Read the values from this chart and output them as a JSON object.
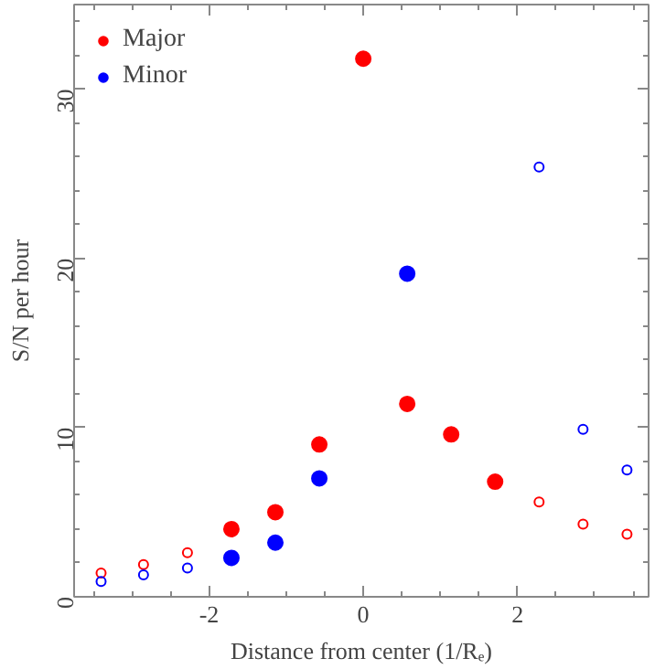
{
  "chart_data": {
    "type": "scatter",
    "xlabel": "Distance from center (1/Rₑ)",
    "ylabel": "S/N per hour",
    "xlim": [
      -3.75,
      3.7
    ],
    "ylim": [
      0,
      35
    ],
    "xticks": [
      -2,
      0,
      2
    ],
    "yticks": [
      0,
      10,
      20,
      30
    ],
    "grid": false,
    "legend": "top left",
    "series": [
      {
        "name": "Major",
        "color": "#ff0000",
        "marker": "circle",
        "x": [
          -1.71,
          -1.14,
          -0.57,
          0,
          0.57,
          1.14,
          1.71
        ],
        "values": [
          4.0,
          5.0,
          9.0,
          31.8,
          11.4,
          9.6,
          6.8
        ]
      },
      {
        "color": "#ff0000",
        "marker": "circle_open",
        "x": [
          -3.4,
          -2.85,
          -2.28,
          2.28,
          2.85,
          3.42
        ],
        "values": [
          1.4,
          1.9,
          2.6,
          5.6,
          4.3,
          3.7
        ]
      },
      {
        "name": "Minor",
        "color": "#0000ff",
        "marker": "circle",
        "x": [
          -1.71,
          -1.14,
          -0.57,
          0.57
        ],
        "values": [
          2.3,
          3.2,
          7.0,
          19.1
        ]
      },
      {
        "color": "#0000ff",
        "marker": "circle_open",
        "x": [
          -3.4,
          -2.85,
          -2.28,
          2.28,
          2.85,
          3.42
        ],
        "values": [
          0.9,
          1.3,
          1.7,
          25.4,
          9.9,
          7.5
        ]
      }
    ]
  }
}
